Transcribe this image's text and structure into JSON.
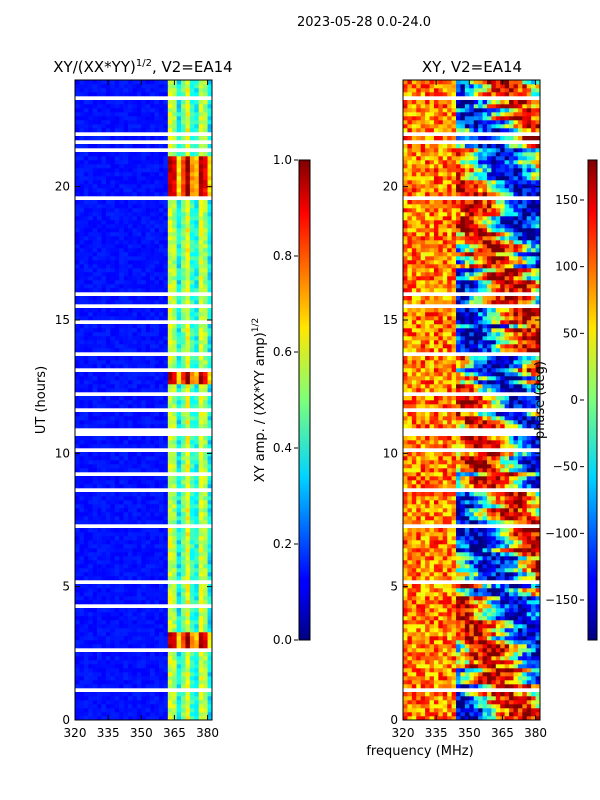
{
  "chart_data": [
    {
      "type": "heatmap",
      "title": "XY/(XX*YY)",
      "title_exponent": "1/2",
      "title_suffix": ", V2=EA14",
      "xlabel": "",
      "ylabel": "UT (hours)",
      "xlim": [
        320,
        382
      ],
      "ylim": [
        0,
        24
      ],
      "x_ticks": [
        "320",
        "335",
        "350",
        "365",
        "380"
      ],
      "x_tick_values": [
        320,
        335,
        350,
        365,
        380
      ],
      "y_ticks": [
        "0",
        "5",
        "10",
        "15",
        "20"
      ],
      "y_tick_values": [
        0,
        5,
        10,
        15,
        20
      ],
      "colorbar": {
        "label": "XY amp. / (XX*YY amp)",
        "label_exponent": "1/2",
        "range": [
          0.0,
          1.0
        ],
        "ticks": [
          "0.0",
          "0.2",
          "0.4",
          "0.6",
          "0.8",
          "1.0"
        ],
        "tick_values": [
          0.0,
          0.2,
          0.4,
          0.6,
          0.8,
          1.0
        ]
      },
      "gap_bands_hours": [
        [
          23.3,
          23.4
        ],
        [
          22.6,
          22.7
        ],
        [
          21.9,
          22.05
        ],
        [
          21.55,
          21.7
        ],
        [
          21.3,
          21.4
        ],
        [
          19.5,
          19.6
        ],
        [
          18.7,
          18.8
        ],
        [
          17.7,
          17.75
        ],
        [
          16.6,
          16.7
        ],
        [
          15.9,
          16.0
        ],
        [
          15.45,
          15.6
        ],
        [
          14.9,
          15.0
        ],
        [
          14.2,
          14.3
        ],
        [
          13.6,
          13.75
        ],
        [
          13.1,
          13.15
        ],
        [
          12.2,
          12.3
        ],
        [
          11.6,
          11.75
        ],
        [
          10.65,
          10.95
        ],
        [
          10.05,
          10.25
        ],
        [
          9.2,
          9.3
        ],
        [
          8.6,
          8.65
        ],
        [
          7.9,
          8.0
        ],
        [
          7.2,
          7.4
        ],
        [
          6.7,
          6.8
        ],
        [
          5.1,
          5.3
        ],
        [
          4.2,
          4.3
        ],
        [
          3.4,
          3.5
        ],
        [
          2.6,
          2.7
        ],
        [
          1.9,
          2.0
        ],
        [
          1.1,
          1.2
        ],
        [
          0.4,
          0.5
        ]
      ],
      "active_band_mhz": [
        362,
        381
      ],
      "high_amplitude_hours": [
        [
          19.6,
          21.1
        ],
        [
          12.6,
          13.1
        ],
        [
          2.5,
          3.3
        ]
      ]
    },
    {
      "type": "heatmap",
      "title": "XY, V2=EA14",
      "xlabel": "frequency (MHz)",
      "ylabel": "",
      "xlim": [
        320,
        382
      ],
      "ylim": [
        0,
        24
      ],
      "x_ticks": [
        "320",
        "335",
        "350",
        "365",
        "380"
      ],
      "x_tick_values": [
        320,
        335,
        350,
        365,
        380
      ],
      "y_ticks": [
        "0",
        "5",
        "10",
        "15",
        "20"
      ],
      "y_tick_values": [
        0,
        5,
        10,
        15,
        20
      ],
      "colorbar": {
        "label": "phase (deg)",
        "range": [
          -180,
          180
        ],
        "ticks": [
          "−150",
          "−100",
          "−50",
          "0",
          "50",
          "100",
          "150"
        ],
        "tick_values": [
          -150,
          -100,
          -50,
          0,
          50,
          100,
          150
        ]
      },
      "gap_bands_hours": [
        [
          23.3,
          23.4
        ],
        [
          22.6,
          22.7
        ],
        [
          21.9,
          22.05
        ],
        [
          21.55,
          21.7
        ],
        [
          19.5,
          19.6
        ],
        [
          18.7,
          18.8
        ],
        [
          17.7,
          17.75
        ],
        [
          16.6,
          16.7
        ],
        [
          15.9,
          16.0
        ],
        [
          15.45,
          15.6
        ],
        [
          14.2,
          14.3
        ],
        [
          13.6,
          13.75
        ],
        [
          12.2,
          12.3
        ],
        [
          11.6,
          11.75
        ],
        [
          10.65,
          10.95
        ],
        [
          10.05,
          10.25
        ],
        [
          8.6,
          8.65
        ],
        [
          7.2,
          7.4
        ],
        [
          6.7,
          6.8
        ],
        [
          5.1,
          5.3
        ],
        [
          3.4,
          3.5
        ],
        [
          1.9,
          2.0
        ],
        [
          1.1,
          1.2
        ],
        [
          0.4,
          0.5
        ]
      ]
    }
  ],
  "suptitle": "2023-05-28 0.0-24.0"
}
